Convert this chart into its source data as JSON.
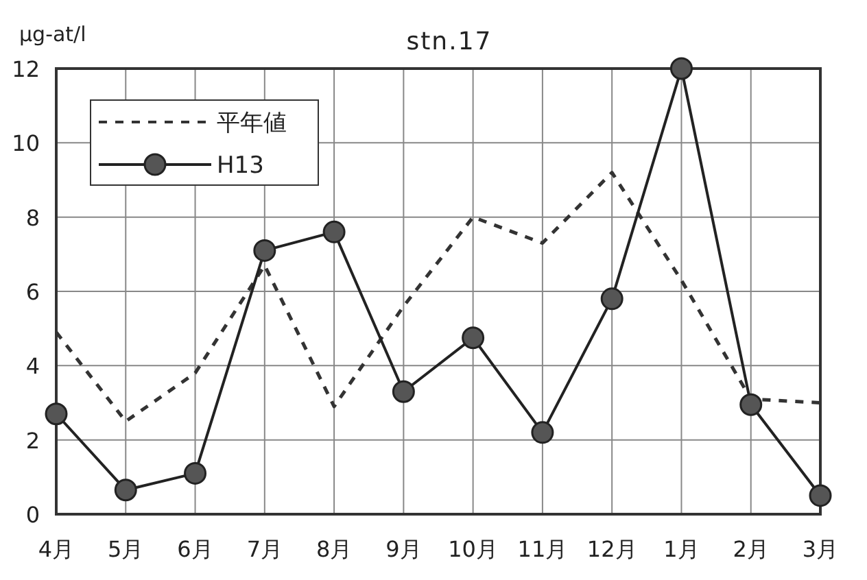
{
  "chart_data": {
    "type": "line",
    "title": "stn.17",
    "ylabel": "μg-at/l",
    "categories": [
      "4月",
      "5月",
      "6月",
      "7月",
      "8月",
      "9月",
      "10月",
      "11月",
      "12月",
      "1月",
      "2月",
      "3月"
    ],
    "ylim": [
      0,
      12
    ],
    "yticks": [
      0,
      2,
      4,
      6,
      8,
      10,
      12
    ],
    "grid": true,
    "legend": "top left",
    "series": [
      {
        "name": "平年値",
        "color": "#333333",
        "line_style": "dashed",
        "marker": "none",
        "values": [
          4.9,
          2.5,
          3.8,
          6.7,
          2.9,
          5.6,
          8.0,
          7.3,
          9.2,
          6.3,
          3.1,
          3.0
        ]
      },
      {
        "name": "H13",
        "color": "#222222",
        "line_style": "solid",
        "marker": "circle",
        "values": [
          2.7,
          0.65,
          1.1,
          7.1,
          7.6,
          3.3,
          4.75,
          2.2,
          5.8,
          12.0,
          2.95,
          0.5
        ]
      }
    ]
  }
}
